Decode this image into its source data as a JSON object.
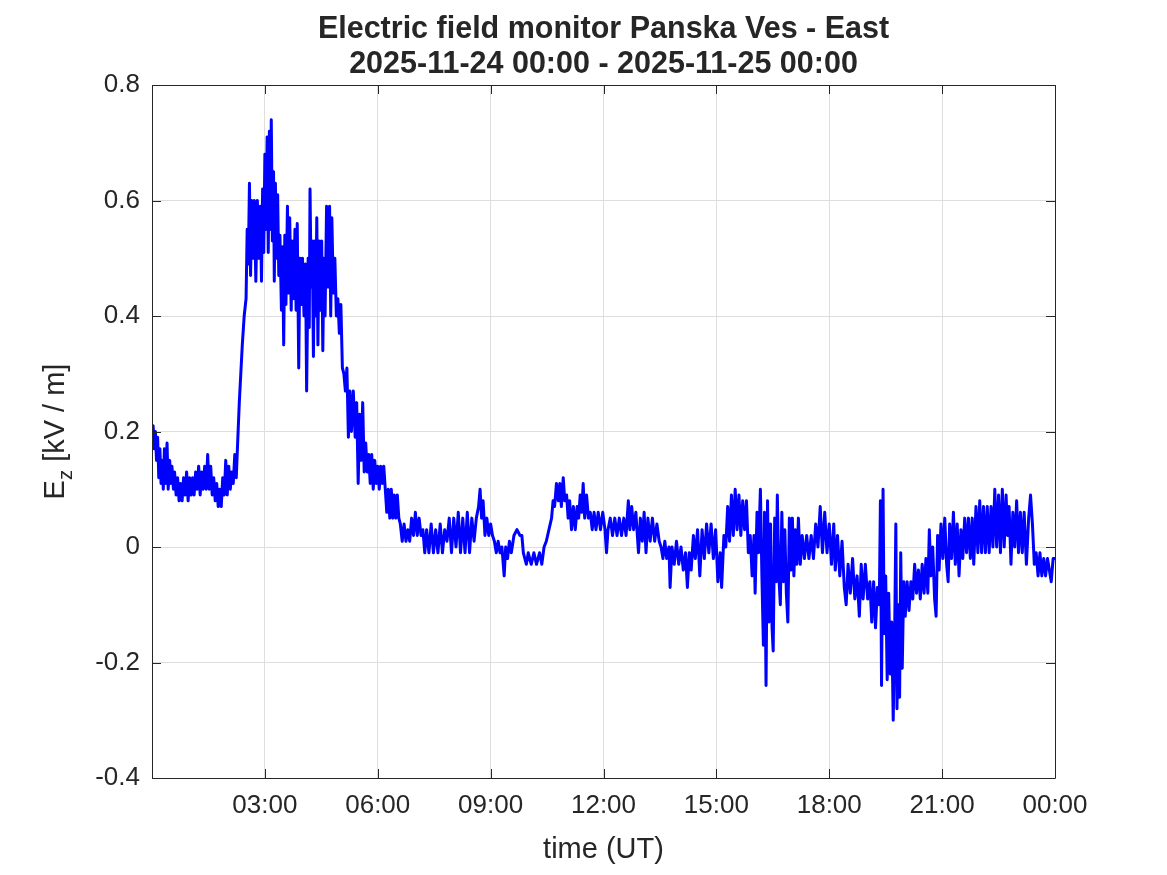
{
  "chart_data": {
    "type": "line",
    "title": "Electric field monitor Panska Ves - East",
    "subtitle": "2025-11-24 00:00 - 2025-11-25 00:00",
    "xlabel": "time (UT)",
    "ylabel": "E$_{z}$ [kV / m]",
    "x": [
      0,
      0.03,
      0.06,
      0.09,
      0.12,
      0.15,
      0.18,
      0.21,
      0.24,
      0.27,
      0.3,
      0.33,
      0.36,
      0.4,
      0.43,
      0.47,
      0.5,
      0.53,
      0.57,
      0.6,
      0.64,
      0.68,
      0.72,
      0.76,
      0.8,
      0.84,
      0.88,
      0.92,
      0.96,
      1.0,
      1.04,
      1.08,
      1.12,
      1.16,
      1.2,
      1.24,
      1.28,
      1.32,
      1.36,
      1.4,
      1.44,
      1.48,
      1.52,
      1.56,
      1.6,
      1.64,
      1.68,
      1.72,
      1.76,
      1.8,
      1.84,
      1.88,
      1.92,
      1.96,
      2.0,
      2.04,
      2.08,
      2.12,
      2.16,
      2.2,
      2.24,
      2.27,
      2.32,
      2.36,
      2.4,
      2.45,
      2.5,
      2.53,
      2.56,
      2.59,
      2.62,
      2.65,
      2.68,
      2.72,
      2.76,
      2.8,
      2.84,
      2.88,
      2.91,
      2.94,
      2.97,
      3.0,
      3.03,
      3.06,
      3.09,
      3.12,
      3.15,
      3.17,
      3.2,
      3.23,
      3.25,
      3.28,
      3.31,
      3.34,
      3.37,
      3.4,
      3.44,
      3.47,
      3.5,
      3.53,
      3.56,
      3.6,
      3.63,
      3.66,
      3.7,
      3.73,
      3.76,
      3.8,
      3.83,
      3.86,
      3.9,
      3.93,
      3.97,
      4.0,
      4.04,
      4.08,
      4.11,
      4.15,
      4.18,
      4.2,
      4.23,
      4.26,
      4.29,
      4.32,
      4.35,
      4.38,
      4.41,
      4.44,
      4.48,
      4.51,
      4.54,
      4.57,
      4.6,
      4.64,
      4.68,
      4.72,
      4.75,
      4.78,
      4.82,
      4.86,
      4.9,
      4.94,
      4.98,
      5.02,
      5.06,
      5.1,
      5.14,
      5.18,
      5.22,
      5.26,
      5.3,
      5.35,
      5.4,
      5.44,
      5.48,
      5.52,
      5.56,
      5.6,
      5.64,
      5.68,
      5.72,
      5.76,
      5.8,
      5.84,
      5.88,
      5.92,
      5.96,
      6.0,
      6.04,
      6.08,
      6.12,
      6.16,
      6.2,
      6.24,
      6.28,
      6.32,
      6.36,
      6.4,
      6.44,
      6.48,
      6.52,
      6.56,
      6.6,
      6.65,
      6.7,
      6.75,
      6.8,
      6.85,
      6.9,
      6.95,
      7.0,
      7.05,
      7.1,
      7.15,
      7.2,
      7.25,
      7.3,
      7.36,
      7.42,
      7.48,
      7.54,
      7.6,
      7.66,
      7.72,
      7.78,
      7.84,
      7.9,
      7.96,
      8.02,
      8.08,
      8.14,
      8.2,
      8.26,
      8.32,
      8.38,
      8.44,
      8.5,
      8.56,
      8.62,
      8.68,
      8.72,
      8.76,
      8.8,
      8.85,
      8.9,
      8.95,
      9.0,
      9.05,
      9.1,
      9.15,
      9.2,
      9.25,
      9.3,
      9.36,
      9.4,
      9.45,
      9.5,
      9.55,
      9.62,
      9.7,
      9.78,
      9.83,
      9.87,
      9.95,
      10.0,
      10.08,
      10.15,
      10.22,
      10.3,
      10.36,
      10.42,
      10.48,
      10.55,
      10.62,
      10.66,
      10.7,
      10.75,
      10.8,
      10.84,
      10.88,
      10.93,
      10.97,
      11.02,
      11.06,
      11.1,
      11.15,
      11.2,
      11.25,
      11.3,
      11.34,
      11.38,
      11.42,
      11.46,
      11.5,
      11.55,
      11.6,
      11.65,
      11.7,
      11.75,
      11.8,
      11.86,
      11.92,
      11.98,
      12.04,
      12.08,
      12.12,
      12.18,
      12.24,
      12.3,
      12.36,
      12.42,
      12.48,
      12.54,
      12.6,
      12.66,
      12.7,
      12.75,
      12.8,
      12.86,
      12.93,
      12.98,
      13.03,
      13.08,
      13.13,
      13.18,
      13.24,
      13.3,
      13.36,
      13.42,
      13.48,
      13.53,
      13.58,
      13.63,
      13.68,
      13.74,
      13.77,
      13.82,
      13.88,
      13.94,
      14.0,
      14.06,
      14.12,
      14.18,
      14.23,
      14.28,
      14.33,
      14.39,
      14.44,
      14.5,
      14.56,
      14.62,
      14.68,
      14.74,
      14.8,
      14.86,
      14.92,
      14.98,
      15.04,
      15.1,
      15.14,
      15.2,
      15.25,
      15.3,
      15.35,
      15.4,
      15.45,
      15.5,
      15.55,
      15.6,
      15.65,
      15.7,
      15.75,
      15.8,
      15.85,
      15.9,
      15.95,
      16.0,
      16.03,
      16.08,
      16.12,
      16.17,
      16.21,
      16.25,
      16.28,
      16.32,
      16.36,
      16.4,
      16.44,
      16.48,
      16.51,
      16.55,
      16.59,
      16.62,
      16.66,
      16.7,
      16.74,
      16.78,
      16.82,
      16.86,
      16.9,
      16.94,
      16.98,
      17.02,
      17.06,
      17.1,
      17.14,
      17.18,
      17.23,
      17.28,
      17.34,
      17.4,
      17.46,
      17.52,
      17.58,
      17.64,
      17.7,
      17.76,
      17.82,
      17.88,
      17.94,
      18.0,
      18.06,
      18.12,
      18.16,
      18.22,
      18.28,
      18.34,
      18.4,
      18.45,
      18.5,
      18.56,
      18.62,
      18.68,
      18.74,
      18.8,
      18.85,
      18.9,
      18.96,
      19.02,
      19.08,
      19.13,
      19.18,
      19.23,
      19.28,
      19.33,
      19.36,
      19.39,
      19.43,
      19.46,
      19.5,
      19.54,
      19.58,
      19.62,
      19.66,
      19.7,
      19.74,
      19.77,
      19.8,
      19.84,
      19.87,
      19.9,
      19.94,
      19.98,
      20.02,
      20.07,
      20.12,
      20.17,
      20.22,
      20.27,
      20.32,
      20.37,
      20.42,
      20.47,
      20.52,
      20.57,
      20.62,
      20.66,
      20.7,
      20.75,
      20.8,
      20.84,
      20.88,
      20.92,
      20.97,
      21.02,
      21.07,
      21.12,
      21.16,
      21.2,
      21.25,
      21.3,
      21.35,
      21.4,
      21.45,
      21.5,
      21.55,
      21.6,
      21.65,
      21.7,
      21.75,
      21.8,
      21.84,
      21.9,
      21.95,
      22.0,
      22.05,
      22.1,
      22.15,
      22.2,
      22.25,
      22.3,
      22.35,
      22.4,
      22.45,
      22.5,
      22.55,
      22.6,
      22.65,
      22.7,
      22.74,
      22.78,
      22.83,
      22.88,
      22.93,
      22.98,
      23.03,
      23.08,
      23.13,
      23.18,
      23.24,
      23.3,
      23.35,
      23.4,
      23.45,
      23.5,
      23.55,
      23.6,
      23.65,
      23.7,
      23.75,
      23.8,
      23.85,
      23.9,
      23.95,
      24.0
    ],
    "values": [
      0.19,
      0.21,
      0.17,
      0.2,
      0.15,
      0.19,
      0.12,
      0.17,
      0.11,
      0.15,
      0.1,
      0.17,
      0.11,
      0.18,
      0.1,
      0.15,
      0.11,
      0.14,
      0.1,
      0.13,
      0.09,
      0.12,
      0.08,
      0.11,
      0.08,
      0.12,
      0.09,
      0.13,
      0.08,
      0.12,
      0.09,
      0.12,
      0.09,
      0.13,
      0.1,
      0.14,
      0.09,
      0.13,
      0.1,
      0.14,
      0.1,
      0.16,
      0.1,
      0.14,
      0.09,
      0.12,
      0.08,
      0.11,
      0.07,
      0.1,
      0.07,
      0.12,
      0.09,
      0.15,
      0.09,
      0.14,
      0.1,
      0.13,
      0.11,
      0.16,
      0.12,
      0.17,
      0.25,
      0.3,
      0.35,
      0.4,
      0.43,
      0.55,
      0.49,
      0.63,
      0.47,
      0.6,
      0.5,
      0.6,
      0.46,
      0.6,
      0.5,
      0.59,
      0.46,
      0.62,
      0.51,
      0.68,
      0.55,
      0.71,
      0.51,
      0.72,
      0.55,
      0.74,
      0.53,
      0.65,
      0.46,
      0.63,
      0.5,
      0.61,
      0.47,
      0.54,
      0.41,
      0.52,
      0.35,
      0.54,
      0.42,
      0.59,
      0.44,
      0.57,
      0.41,
      0.53,
      0.43,
      0.55,
      0.41,
      0.56,
      0.31,
      0.5,
      0.42,
      0.5,
      0.4,
      0.49,
      0.27,
      0.5,
      0.38,
      0.62,
      0.45,
      0.53,
      0.33,
      0.53,
      0.4,
      0.57,
      0.35,
      0.53,
      0.41,
      0.53,
      0.34,
      0.5,
      0.4,
      0.59,
      0.45,
      0.59,
      0.4,
      0.57,
      0.44,
      0.5,
      0.4,
      0.43,
      0.37,
      0.42,
      0.31,
      0.3,
      0.27,
      0.31,
      0.19,
      0.27,
      0.2,
      0.27,
      0.19,
      0.25,
      0.11,
      0.23,
      0.15,
      0.25,
      0.13,
      0.18,
      0.13,
      0.16,
      0.11,
      0.16,
      0.1,
      0.15,
      0.11,
      0.14,
      0.1,
      0.14,
      0.11,
      0.14,
      0.1,
      0.06,
      0.1,
      0.05,
      0.1,
      0.05,
      0.09,
      0.05,
      0.09,
      0.05,
      0.04,
      0.01,
      0.04,
      0.01,
      0.03,
      0.01,
      0.05,
      0.02,
      0.06,
      0.02,
      0.05,
      0.02,
      0.03,
      -0.01,
      0.03,
      -0.01,
      0.04,
      -0.01,
      0.03,
      -0.01,
      0.04,
      -0.01,
      0.03,
      0.01,
      0.05,
      -0.01,
      0.05,
      0,
      0.06,
      -0.01,
      0.05,
      -0.01,
      0.06,
      -0.01,
      0.05,
      0.01,
      0.05,
      0.07,
      0.1,
      0.05,
      0.08,
      0.02,
      0.05,
      0.02,
      0.04,
      0.02,
      0.01,
      -0.01,
      0.01,
      -0.01,
      0,
      -0.05,
      0,
      -0.02,
      0.01,
      -0.01,
      0.02,
      0.03,
      0.02,
      0.02,
      -0.01,
      -0.03,
      -0.01,
      -0.03,
      -0.01,
      -0.03,
      -0.01,
      -0.03,
      0,
      0.01,
      0.03,
      0.05,
      0.08,
      0.07,
      0.11,
      0.08,
      0.11,
      0.07,
      0.12,
      0.08,
      0.09,
      0.05,
      0.08,
      0.03,
      0.07,
      0.03,
      0.07,
      0.05,
      0.09,
      0.06,
      0.11,
      0.05,
      0.09,
      0.05,
      0.06,
      0.03,
      0.06,
      0.03,
      0.06,
      0.03,
      0.06,
      0.03,
      -0.01,
      0.03,
      0.05,
      0.02,
      0.05,
      0.02,
      0.05,
      0.02,
      0.05,
      0.02,
      0.08,
      0.03,
      0.07,
      0.03,
      0.06,
      -0.01,
      0.05,
      0.01,
      0.06,
      -0.01,
      0.05,
      0.01,
      0.05,
      0.01,
      0.04,
      0.01,
      0,
      -0.02,
      0.01,
      -0.02,
      0,
      -0.07,
      0,
      -0.03,
      0.01,
      -0.03,
      0,
      -0.04,
      -0.01,
      -0.07,
      -0.01,
      -0.04,
      0.02,
      -0.02,
      0.03,
      -0.05,
      0.03,
      -0.02,
      0.04,
      -0.01,
      0.04,
      -0.02,
      0.03,
      -0.06,
      -0.01,
      -0.07,
      0.02,
      0,
      0.07,
      0.01,
      0.09,
      0.02,
      0.1,
      0.03,
      0.09,
      0.02,
      0.08,
      0.03,
      0.08,
      -0.01,
      0.02,
      -0.05,
      0.02,
      -0.08,
      0.06,
      -0.01,
      0.1,
      -0.05,
      -0.17,
      0.06,
      -0.24,
      0.08,
      -0.13,
      0.04,
      -0.14,
      -0.18,
      0.05,
      -0.06,
      0.09,
      -0.05,
      -0.1,
      0.06,
      -0.06,
      0.03,
      -0.08,
      -0.13,
      0.05,
      -0.04,
      0.05,
      -0.05,
      0.03,
      -0.03,
      0.05,
      -0.03,
      0.02,
      -0.02,
      0.02,
      -0.02,
      0.02,
      -0.02,
      0.04,
      0,
      0.07,
      -0.01,
      0.06,
      -0.01,
      0.04,
      -0.03,
      0.04,
      -0.04,
      0.02,
      -0.05,
      0.01,
      -0.07,
      -0.1,
      -0.03,
      -0.08,
      -0.02,
      -0.09,
      -0.05,
      -0.12,
      -0.03,
      -0.09,
      -0.03,
      -0.09,
      -0.06,
      -0.13,
      -0.06,
      -0.14,
      -0.07,
      -0.1,
      0.08,
      -0.24,
      0.1,
      -0.15,
      -0.05,
      -0.23,
      -0.08,
      -0.22,
      -0.13,
      -0.3,
      -0.14,
      0.04,
      -0.28,
      -0.1,
      -0.26,
      -0.01,
      -0.21,
      -0.06,
      -0.12,
      -0.06,
      -0.11,
      -0.06,
      -0.09,
      -0.03,
      -0.08,
      -0.04,
      -0.09,
      -0.03,
      -0.08,
      -0.02,
      -0.08,
      0.03,
      -0.05,
      0,
      -0.09,
      -0.12,
      0.02,
      -0.04,
      0.04,
      -0.02,
      0.05,
      -0.03,
      -0.06,
      0.04,
      -0.02,
      0.06,
      -0.03,
      0.04,
      -0.05,
      0.03,
      -0.02,
      0.05,
      -0.01,
      0.05,
      -0.02,
      0.05,
      -0.03,
      0.07,
      -0.01,
      0.08,
      -0.01,
      0.07,
      -0.01,
      0.07,
      -0.01,
      0.07,
      0,
      0.1,
      0,
      0.09,
      -0.01,
      0.1,
      0,
      0.09,
      0.02,
      0.07,
      -0.03,
      0.06,
      0,
      0.08,
      -0.01,
      0.06,
      -0.01,
      0.06,
      -0.03,
      0.05,
      0.09,
      0.04,
      -0.03,
      -0.01,
      -0.05,
      -0.01,
      -0.05,
      -0.02,
      -0.05,
      -0.02,
      -0.04,
      -0.06,
      -0.02,
      -0.02
    ],
    "color": "#0000ff",
    "xlim": [
      0,
      24
    ],
    "xticks": [
      {
        "value": 3,
        "label": "03:00"
      },
      {
        "value": 6,
        "label": "06:00"
      },
      {
        "value": 9,
        "label": "09:00"
      },
      {
        "value": 12,
        "label": "12:00"
      },
      {
        "value": 15,
        "label": "15:00"
      },
      {
        "value": 18,
        "label": "18:00"
      },
      {
        "value": 21,
        "label": "21:00"
      },
      {
        "value": 24,
        "label": "00:00"
      }
    ],
    "ylim": [
      -0.4,
      0.8
    ],
    "yticks": [
      -0.4,
      -0.2,
      0,
      0.2,
      0.4,
      0.6,
      0.8
    ],
    "grid": true
  }
}
